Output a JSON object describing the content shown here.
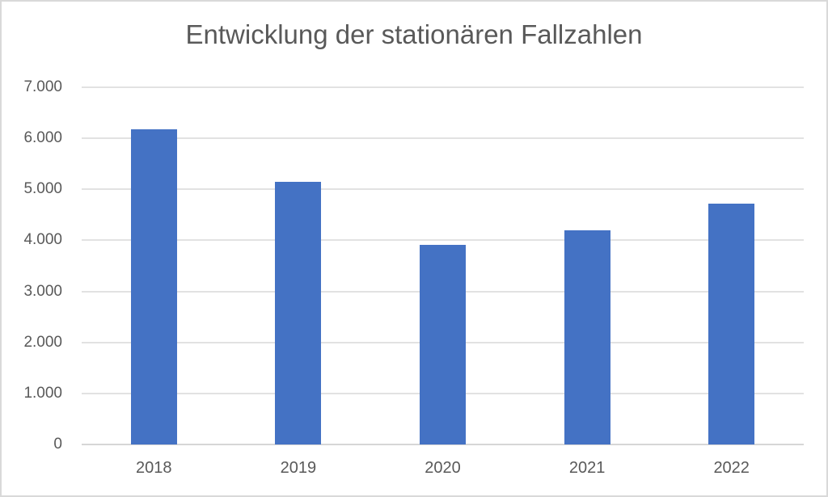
{
  "chart_data": {
    "type": "bar",
    "title": "Entwicklung der stationären Fallzahlen",
    "categories": [
      "2018",
      "2019",
      "2020",
      "2021",
      "2022"
    ],
    "values": [
      6170,
      5150,
      3910,
      4200,
      4720
    ],
    "xlabel": "",
    "ylabel": "",
    "ylim": [
      0,
      7000
    ],
    "ytick_step": 1000,
    "yticks": [
      {
        "value": 0,
        "label": "0"
      },
      {
        "value": 1000,
        "label": "1.000"
      },
      {
        "value": 2000,
        "label": "2.000"
      },
      {
        "value": 3000,
        "label": "3.000"
      },
      {
        "value": 4000,
        "label": "4.000"
      },
      {
        "value": 5000,
        "label": "5.000"
      },
      {
        "value": 6000,
        "label": "6.000"
      },
      {
        "value": 7000,
        "label": "7.000"
      }
    ],
    "grid": "horizontal",
    "legend": "none",
    "colors": {
      "bar": "#4472C4",
      "gridline": "#E2E2E2",
      "axis_line": "#D6D6D6",
      "text": "#595959",
      "border": "#D9D9D9",
      "background": "#FFFFFF"
    }
  }
}
